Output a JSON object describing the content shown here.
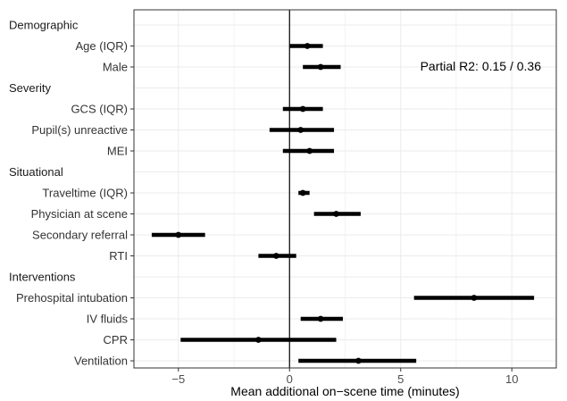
{
  "chart_data": {
    "type": "forest",
    "xlabel": "Mean additional on−scene time (minutes)",
    "xlim": [
      -7,
      12
    ],
    "xticks": [
      -5,
      0,
      5,
      10
    ],
    "xtick_labels": [
      "−5",
      "0",
      "5",
      "10"
    ],
    "reference_line": 0,
    "grid": true,
    "annotation": "Partial R2: 0.15 / 0.36",
    "rows": [
      {
        "kind": "header",
        "label": "Demographic"
      },
      {
        "kind": "item",
        "label": "Age (IQR)",
        "estimate": 0.8,
        "lower": 0.0,
        "upper": 1.5
      },
      {
        "kind": "item",
        "label": "Male",
        "estimate": 1.4,
        "lower": 0.6,
        "upper": 2.3
      },
      {
        "kind": "header",
        "label": "Severity"
      },
      {
        "kind": "item",
        "label": "GCS (IQR)",
        "estimate": 0.6,
        "lower": -0.3,
        "upper": 1.5
      },
      {
        "kind": "item",
        "label": "Pupil(s) unreactive",
        "estimate": 0.5,
        "lower": -0.9,
        "upper": 2.0
      },
      {
        "kind": "item",
        "label": "MEI",
        "estimate": 0.9,
        "lower": -0.3,
        "upper": 2.0
      },
      {
        "kind": "header",
        "label": "Situational"
      },
      {
        "kind": "item",
        "label": "Traveltime (IQR)",
        "estimate": 0.6,
        "lower": 0.4,
        "upper": 0.9
      },
      {
        "kind": "item",
        "label": "Physician at scene",
        "estimate": 2.1,
        "lower": 1.1,
        "upper": 3.2
      },
      {
        "kind": "item",
        "label": "Secondary referral",
        "estimate": -5.0,
        "lower": -6.2,
        "upper": -3.8
      },
      {
        "kind": "item",
        "label": "RTI",
        "estimate": -0.6,
        "lower": -1.4,
        "upper": 0.3
      },
      {
        "kind": "header",
        "label": "Interventions"
      },
      {
        "kind": "item",
        "label": "Prehospital intubation",
        "estimate": 8.3,
        "lower": 5.6,
        "upper": 11.0
      },
      {
        "kind": "item",
        "label": "IV fluids",
        "estimate": 1.4,
        "lower": 0.5,
        "upper": 2.4
      },
      {
        "kind": "item",
        "label": "CPR",
        "estimate": -1.4,
        "lower": -4.9,
        "upper": 2.1
      },
      {
        "kind": "item",
        "label": "Ventilation",
        "estimate": 3.1,
        "lower": 0.4,
        "upper": 5.7
      }
    ]
  }
}
